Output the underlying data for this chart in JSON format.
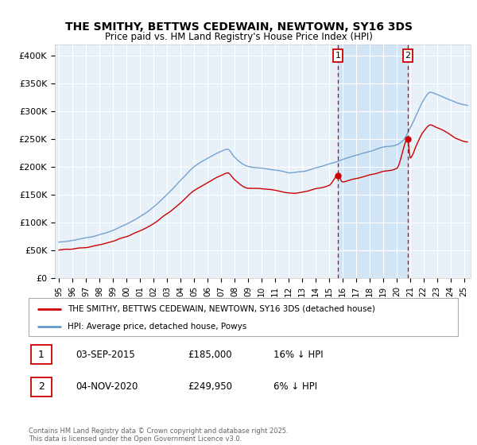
{
  "title": "THE SMITHY, BETTWS CEDEWAIN, NEWTOWN, SY16 3DS",
  "subtitle": "Price paid vs. HM Land Registry's House Price Index (HPI)",
  "legend_entry1": "THE SMITHY, BETTWS CEDEWAIN, NEWTOWN, SY16 3DS (detached house)",
  "legend_entry2": "HPI: Average price, detached house, Powys",
  "annotation1_label": "1",
  "annotation1_date": "03-SEP-2015",
  "annotation1_price": "£185,000",
  "annotation1_hpi": "16% ↓ HPI",
  "annotation2_label": "2",
  "annotation2_date": "04-NOV-2020",
  "annotation2_price": "£249,950",
  "annotation2_hpi": "6% ↓ HPI",
  "footer": "Contains HM Land Registry data © Crown copyright and database right 2025.\nThis data is licensed under the Open Government Licence v3.0.",
  "ylabel_ticks": [
    "£0",
    "£50K",
    "£100K",
    "£150K",
    "£200K",
    "£250K",
    "£300K",
    "£350K",
    "£400K"
  ],
  "ylim": [
    0,
    420000
  ],
  "background_color": "#ffffff",
  "plot_bg_color": "#e8f0f8",
  "grid_color": "#ffffff",
  "line1_color": "#cc0000",
  "line2_color": "#6699cc",
  "annotation_vline_color": "#cc0000",
  "annotation_box_color": "#cc0000",
  "shaded_region_color": "#d0e4f5",
  "sale1_year": 2015.67,
  "sale2_year": 2020.84,
  "sale1_price": 185000,
  "sale2_price": 249950,
  "fig_width": 6.0,
  "fig_height": 5.6,
  "dpi": 100
}
